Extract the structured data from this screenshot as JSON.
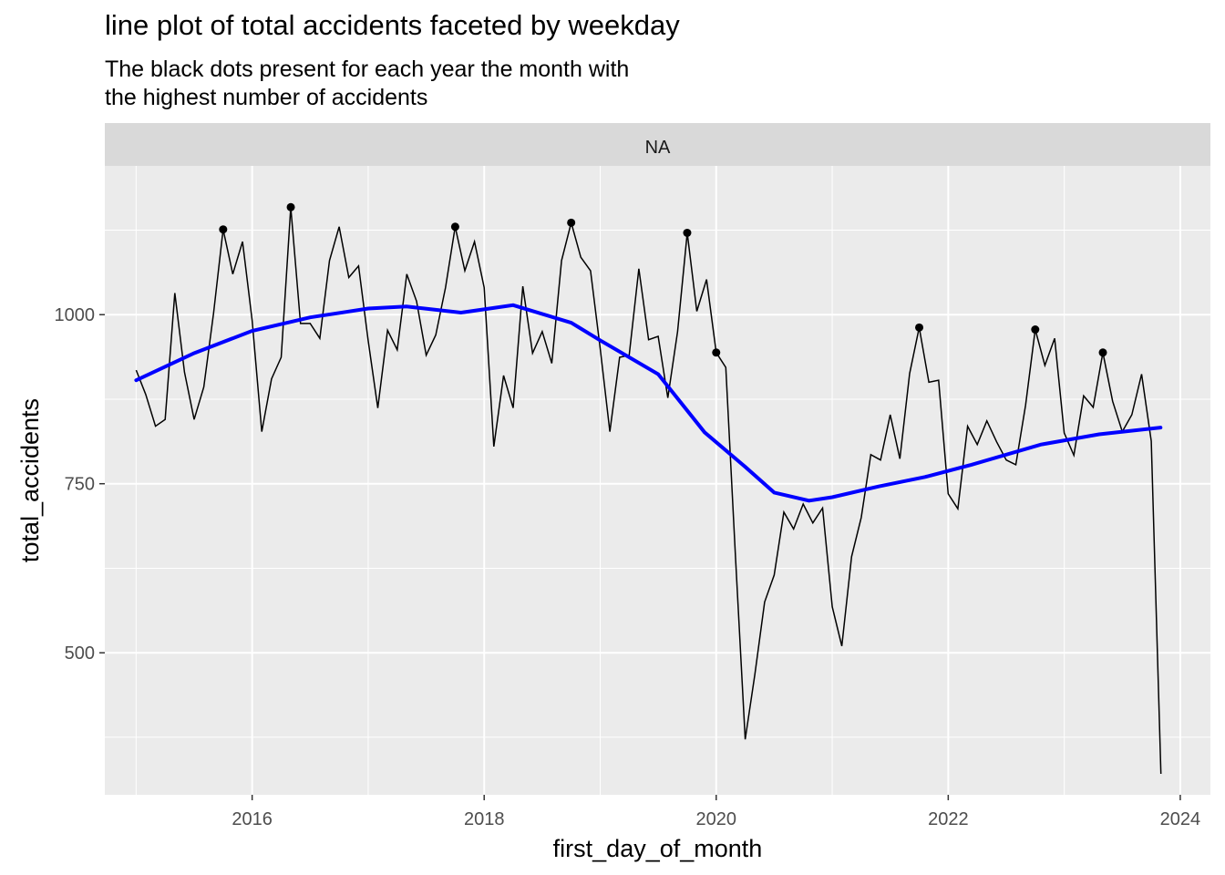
{
  "title": "line plot of total accidents faceted by weekday",
  "subtitle_lines": [
    "The black dots present for each year the month with",
    "the highest number of accidents"
  ],
  "colors": {
    "panel_bg": "#EBEBEB",
    "strip_bg": "#D9D9D9",
    "grid": "#FFFFFF",
    "line": "#000000",
    "smooth": "#0000FF",
    "points": "#000000",
    "axis_text": "#4D4D4D"
  },
  "chart_data": {
    "type": "line",
    "facet_label": "NA",
    "xlabel": "first_day_of_month",
    "ylabel": "total_accidents",
    "xlim": [
      2014.73,
      2024.26
    ],
    "ylim": [
      290,
      1220
    ],
    "x_ticks": [
      2016,
      2018,
      2020,
      2022,
      2024
    ],
    "y_ticks": [
      500,
      750,
      1000
    ],
    "grid": true,
    "legend": "none",
    "series": [
      {
        "type": "line",
        "x": [
          2015.0,
          2015.083,
          2015.167,
          2015.25,
          2015.333,
          2015.417,
          2015.5,
          2015.583,
          2015.667,
          2015.75,
          2015.833,
          2015.917,
          2016.0,
          2016.083,
          2016.167,
          2016.25,
          2016.333,
          2016.417,
          2016.5,
          2016.583,
          2016.667,
          2016.75,
          2016.833,
          2016.917,
          2017.0,
          2017.083,
          2017.167,
          2017.25,
          2017.333,
          2017.417,
          2017.5,
          2017.583,
          2017.667,
          2017.75,
          2017.833,
          2017.917,
          2018.0,
          2018.083,
          2018.167,
          2018.25,
          2018.333,
          2018.417,
          2018.5,
          2018.583,
          2018.667,
          2018.75,
          2018.833,
          2018.917,
          2019.0,
          2019.083,
          2019.167,
          2019.25,
          2019.333,
          2019.417,
          2019.5,
          2019.583,
          2019.667,
          2019.75,
          2019.833,
          2019.917,
          2020.0,
          2020.083,
          2020.167,
          2020.25,
          2020.333,
          2020.417,
          2020.5,
          2020.583,
          2020.667,
          2020.75,
          2020.833,
          2020.917,
          2021.0,
          2021.083,
          2021.167,
          2021.25,
          2021.333,
          2021.417,
          2021.5,
          2021.583,
          2021.667,
          2021.75,
          2021.833,
          2021.917,
          2022.0,
          2022.083,
          2022.167,
          2022.25,
          2022.333,
          2022.417,
          2022.5,
          2022.583,
          2022.667,
          2022.75,
          2022.833,
          2022.917,
          2023.0,
          2023.083,
          2023.167,
          2023.25,
          2023.333,
          2023.417,
          2023.5,
          2023.583,
          2023.667,
          2023.75,
          2023.833
        ],
        "y": [
          918,
          882,
          835,
          845,
          1032,
          915,
          845,
          893,
          1002,
          1126,
          1060,
          1108,
          992,
          827,
          905,
          937,
          1159,
          987,
          987,
          965,
          1080,
          1130,
          1055,
          1072,
          962,
          862,
          977,
          948,
          1060,
          1020,
          940,
          970,
          1040,
          1130,
          1065,
          1108,
          1040,
          805,
          910,
          862,
          1042,
          943,
          975,
          928,
          1080,
          1136,
          1085,
          1065,
          950,
          827,
          937,
          940,
          1068,
          963,
          968,
          877,
          975,
          1121,
          1005,
          1052,
          944,
          922,
          640,
          372,
          468,
          575,
          615,
          708,
          683,
          720,
          692,
          714,
          568,
          510,
          642,
          700,
          793,
          785,
          852,
          787,
          913,
          981,
          900,
          903,
          735,
          713,
          835,
          808,
          843,
          812,
          785,
          778,
          866,
          978,
          925,
          965,
          825,
          792,
          880,
          863,
          944,
          872,
          827,
          852,
          912,
          813,
          321
        ]
      },
      {
        "type": "scatter",
        "name": "yearly max month",
        "x": [
          2015.75,
          2016.333,
          2017.75,
          2018.75,
          2019.75,
          2020.0,
          2021.75,
          2022.75,
          2023.333
        ],
        "y": [
          1126,
          1159,
          1130,
          1136,
          1121,
          944,
          981,
          978,
          944
        ]
      },
      {
        "type": "line",
        "name": "smooth",
        "x": [
          2015.0,
          2015.5,
          2016.0,
          2016.5,
          2017.0,
          2017.33,
          2017.8,
          2018.25,
          2018.75,
          2019.0,
          2019.5,
          2019.9,
          2020.25,
          2020.5,
          2020.8,
          2021.0,
          2021.4,
          2021.8,
          2022.2,
          2022.8,
          2023.3,
          2023.83
        ],
        "y": [
          903,
          943,
          976,
          996,
          1009,
          1012,
          1003,
          1014,
          988,
          962,
          912,
          826,
          775,
          737,
          725,
          730,
          746,
          760,
          778,
          808,
          823,
          833
        ]
      }
    ]
  }
}
